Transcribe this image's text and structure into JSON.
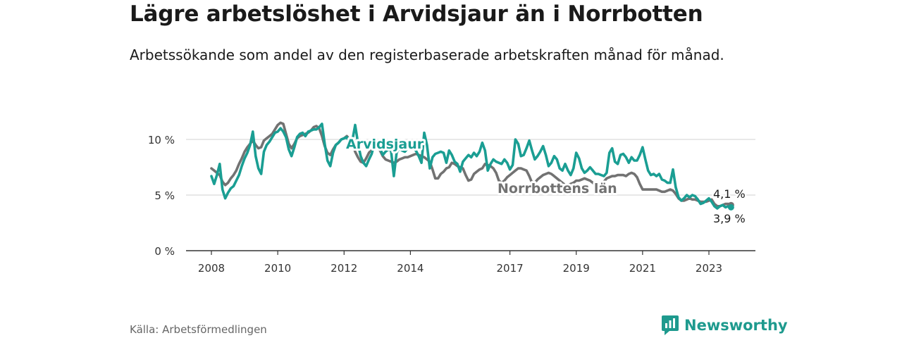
{
  "title": "Lägre arbetslöshet i Arvidsjaur än i Norrbotten",
  "subtitle": "Arbetssökande som andel av den registerbaserade arbetskraften månad för månad.",
  "source": "Källa: Arbetsförmedlingen",
  "brand": {
    "name": "Newsworthy",
    "icon": "newsworthy-logo-icon"
  },
  "colors": {
    "arvidsjaur": "#1a9e93",
    "norrbotten": "#727272",
    "axis": "#333333",
    "grid": "#d9d9d9"
  },
  "chart_data": {
    "type": "line",
    "title": "Lägre arbetslöshet i Arvidsjaur än i Norrbotten",
    "xlabel": "",
    "ylabel": "",
    "xlim": [
      2007.6,
      2024.6
    ],
    "ylim": [
      0,
      10
    ],
    "y_ticks": [
      0,
      5,
      10
    ],
    "y_tick_labels": [
      "0 %",
      "5 %",
      "10 %"
    ],
    "x_ticks": [
      2008,
      2010,
      2012,
      2014,
      2017,
      2019,
      2021,
      2023
    ],
    "x_tick_labels": [
      "2008",
      "2010",
      "2012",
      "2014",
      "2017",
      "2019",
      "2021",
      "2023"
    ],
    "end_labels": {
      "norrbotten": "4,1 %",
      "arvidsjaur": "3,9 %"
    },
    "series": [
      {
        "name": "Arvidsjaur",
        "key": "arvidsjaur",
        "start": 2008.0,
        "step": 0.0833333,
        "values": [
          6.7,
          6.0,
          6.8,
          7.8,
          5.5,
          4.7,
          5.2,
          5.6,
          5.8,
          6.3,
          6.8,
          7.6,
          8.3,
          8.8,
          9.5,
          10.7,
          8.5,
          7.4,
          6.9,
          8.9,
          9.5,
          9.8,
          10.2,
          10.6,
          10.7,
          11.0,
          10.7,
          10.2,
          9.1,
          8.5,
          9.3,
          10.2,
          10.5,
          10.6,
          10.3,
          10.7,
          10.8,
          10.9,
          10.9,
          11.1,
          11.4,
          9.6,
          8.1,
          7.6,
          8.8,
          9.5,
          9.7,
          10.0,
          10.1,
          10.2,
          9.7,
          9.9,
          11.3,
          9.7,
          8.5,
          7.9,
          7.6,
          8.2,
          8.7,
          9.7,
          9.5,
          9.2,
          8.6,
          8.9,
          9.1,
          9.0,
          6.7,
          8.8,
          9.2,
          9.0,
          8.9,
          9.2,
          9.4,
          9.2,
          9.0,
          8.5,
          7.9,
          10.6,
          9.5,
          7.4,
          8.4,
          8.7,
          8.8,
          8.9,
          8.8,
          7.9,
          9.0,
          8.6,
          8.0,
          7.8,
          7.1,
          8.0,
          8.3,
          8.6,
          8.4,
          8.8,
          8.5,
          8.9,
          9.7,
          9.0,
          7.2,
          7.8,
          8.2,
          8.0,
          7.9,
          7.8,
          8.2,
          7.9,
          7.3,
          7.7,
          10.0,
          9.6,
          8.5,
          8.6,
          9.2,
          9.9,
          9.0,
          8.2,
          8.5,
          8.9,
          9.4,
          8.6,
          7.6,
          7.9,
          8.5,
          8.2,
          7.4,
          7.2,
          7.8,
          7.2,
          6.8,
          7.4,
          8.8,
          8.3,
          7.4,
          7.0,
          7.2,
          7.5,
          7.2,
          6.9,
          6.9,
          6.8,
          6.7,
          7.0,
          8.8,
          9.2,
          8.0,
          7.8,
          8.6,
          8.7,
          8.4,
          7.9,
          8.4,
          8.1,
          8.1,
          8.6,
          9.3,
          8.2,
          7.2,
          6.8,
          6.9,
          6.7,
          6.9,
          6.4,
          6.3,
          6.1,
          6.1,
          7.3,
          5.7,
          4.8,
          4.5,
          4.7,
          5.0,
          4.8,
          5.0,
          4.9,
          4.6,
          4.2,
          4.3,
          4.5,
          4.7,
          4.4,
          4.0,
          3.8,
          4.0,
          4.1,
          3.9,
          4.0,
          3.9
        ]
      },
      {
        "name": "Norrbottens län",
        "key": "norrbotten",
        "start": 2008.0,
        "step": 0.0833333,
        "values": [
          7.4,
          7.2,
          7.0,
          6.8,
          6.2,
          5.9,
          6.1,
          6.5,
          6.8,
          7.2,
          7.8,
          8.3,
          8.9,
          9.3,
          9.6,
          9.9,
          9.5,
          9.2,
          9.3,
          9.9,
          10.1,
          10.3,
          10.5,
          10.9,
          11.3,
          11.5,
          11.4,
          10.5,
          9.6,
          9.2,
          9.6,
          10.1,
          10.3,
          10.4,
          10.5,
          10.6,
          10.8,
          11.1,
          11.2,
          11.0,
          10.3,
          9.4,
          8.8,
          8.6,
          9.1,
          9.5,
          9.7,
          10.0,
          10.1,
          10.3,
          10.0,
          9.6,
          8.9,
          8.4,
          8.0,
          7.9,
          8.3,
          8.8,
          9.1,
          9.2,
          9.3,
          9.0,
          8.5,
          8.2,
          8.1,
          8.0,
          7.9,
          8.0,
          8.2,
          8.3,
          8.4,
          8.4,
          8.5,
          8.6,
          8.7,
          8.6,
          8.5,
          8.4,
          8.2,
          8.0,
          7.3,
          6.5,
          6.5,
          6.9,
          7.1,
          7.4,
          7.5,
          7.9,
          7.8,
          7.6,
          7.5,
          7.4,
          6.8,
          6.3,
          6.4,
          6.9,
          7.1,
          7.3,
          7.4,
          7.8,
          7.7,
          7.6,
          7.4,
          7.0,
          6.3,
          6.1,
          6.3,
          6.6,
          6.8,
          7.0,
          7.2,
          7.4,
          7.4,
          7.3,
          7.2,
          6.7,
          6.1,
          6.1,
          6.4,
          6.6,
          6.8,
          6.9,
          7.0,
          6.9,
          6.7,
          6.5,
          6.3,
          6.1,
          5.9,
          5.9,
          6.0,
          6.1,
          6.3,
          6.3,
          6.4,
          6.5,
          6.4,
          6.3,
          6.1,
          5.9,
          5.8,
          5.9,
          6.2,
          6.5,
          6.6,
          6.7,
          6.7,
          6.8,
          6.8,
          6.8,
          6.7,
          6.9,
          7.0,
          6.9,
          6.6,
          6.0,
          5.5,
          5.5,
          5.5,
          5.5,
          5.5,
          5.5,
          5.4,
          5.3,
          5.3,
          5.4,
          5.5,
          5.4,
          5.1,
          4.7,
          4.5,
          4.5,
          4.6,
          4.7,
          4.6,
          4.6,
          4.5,
          4.4,
          4.4,
          4.4,
          4.5,
          4.6,
          4.2,
          4.0,
          4.0,
          4.1,
          4.2,
          4.2,
          4.1
        ]
      }
    ]
  }
}
